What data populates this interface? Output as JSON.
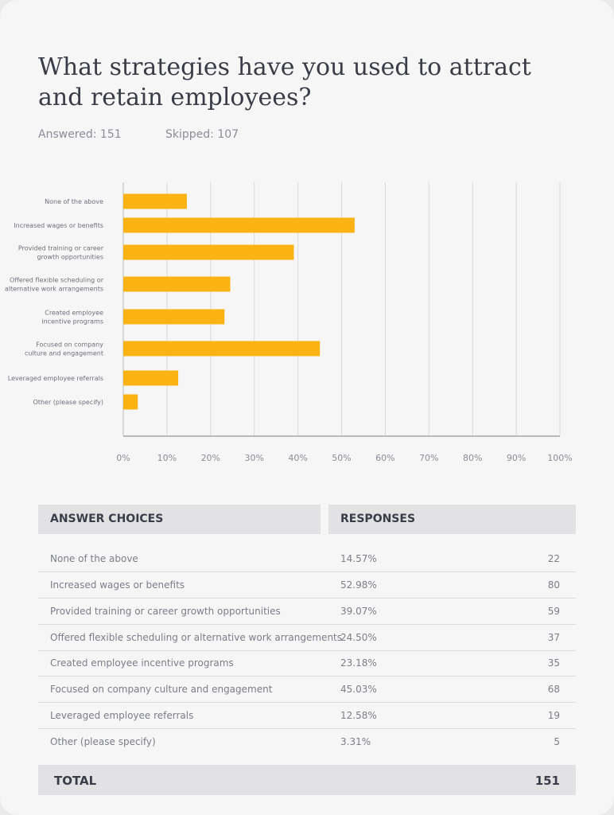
{
  "question": {
    "title": "What strategies have you used to attract and retain employees?",
    "answered": "Answered: 151",
    "skipped": "Skipped: 107"
  },
  "colors": {
    "bar": "#fbb314",
    "grid": "#d9d9dc",
    "axis": "#b8b9bd"
  },
  "chart_data": {
    "type": "bar",
    "orientation": "horizontal",
    "categories": [
      [
        "None of the above"
      ],
      [
        "Increased wages or benefits"
      ],
      [
        "Provided training or career",
        "growth opportunities"
      ],
      [
        "Offered flexible scheduling or",
        "alternative work arrangements"
      ],
      [
        "Created employee",
        "incentive programs"
      ],
      [
        "Focused on company",
        "culture and engagement"
      ],
      [
        "Leveraged employee referrals"
      ],
      [
        "Other (please specify)"
      ]
    ],
    "values": [
      14.57,
      52.98,
      39.07,
      24.5,
      23.18,
      45.03,
      12.58,
      3.31
    ],
    "xlim": [
      0,
      100
    ],
    "xticks": [
      "0%",
      "10%",
      "20%",
      "30%",
      "40%",
      "50%",
      "60%",
      "70%",
      "80%",
      "90%",
      "100%"
    ],
    "grid": true
  },
  "table": {
    "headers": {
      "choices": "ANSWER CHOICES",
      "responses": "RESPONSES"
    },
    "rows": [
      {
        "choice": "None of the above",
        "percent": "14.57%",
        "count": "22"
      },
      {
        "choice": "Increased wages or benefits",
        "percent": "52.98%",
        "count": "80"
      },
      {
        "choice": "Provided training or career growth opportunities",
        "percent": "39.07%",
        "count": "59"
      },
      {
        "choice": "Offered flexible scheduling or alternative work arrangements",
        "percent": "24.50%",
        "count": "37"
      },
      {
        "choice": "Created employee incentive programs",
        "percent": "23.18%",
        "count": "35"
      },
      {
        "choice": "Focused on company culture and engagement",
        "percent": "45.03%",
        "count": "68"
      },
      {
        "choice": "Leveraged employee referrals",
        "percent": "12.58%",
        "count": "19"
      },
      {
        "choice": "Other (please specify)",
        "percent": "3.31%",
        "count": "5"
      }
    ],
    "total_label": "TOTAL",
    "total_value": "151"
  }
}
